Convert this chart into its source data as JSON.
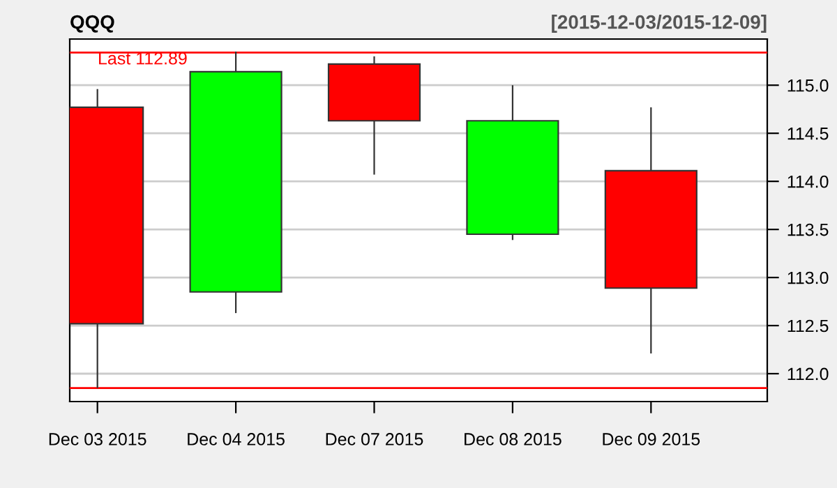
{
  "chart_data": {
    "type": "candlestick",
    "title": "QQQ",
    "subtitle": "[2015-12-03/2015-12-09]",
    "categories": [
      "Dec 03 2015",
      "Dec 04 2015",
      "Dec 07 2015",
      "Dec 08 2015",
      "Dec 09 2015"
    ],
    "ohlc": [
      [
        114.77,
        114.96,
        111.85,
        112.52
      ],
      [
        112.85,
        115.35,
        112.63,
        115.14
      ],
      [
        115.22,
        115.3,
        114.07,
        114.63
      ],
      [
        113.45,
        115.0,
        113.39,
        114.63
      ],
      [
        114.11,
        114.77,
        112.21,
        112.89
      ]
    ],
    "colors": [
      "#ff0000",
      "#00ff00",
      "#ff0000",
      "#00ff00",
      "#ff0000"
    ],
    "ylim": [
      111.71,
      115.48
    ],
    "yticks": [
      {
        "value": 112,
        "label": "112.0"
      },
      {
        "value": 112.5,
        "label": "112.5"
      },
      {
        "value": 113,
        "label": "113.0"
      },
      {
        "value": 113.5,
        "label": "113.5"
      },
      {
        "value": 114,
        "label": "114.0"
      },
      {
        "value": 114.5,
        "label": "114.5"
      },
      {
        "value": 115,
        "label": "115.0"
      }
    ],
    "grid": "y",
    "ref_lines": [
      {
        "axis": "y",
        "value": 115.34,
        "color": "#ff0000"
      },
      {
        "axis": "y",
        "value": 111.85,
        "color": "#ff0000"
      }
    ],
    "annotations": [
      "Last 112.89"
    ]
  }
}
